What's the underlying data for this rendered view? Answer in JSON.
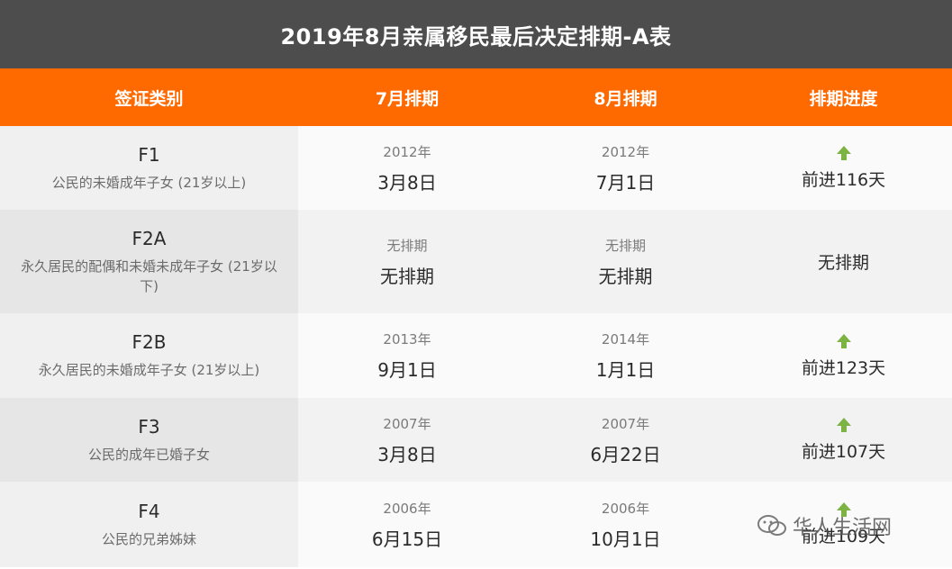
{
  "title": "2019年8月亲属移民最后决定排期-A表",
  "headers": {
    "category": "签证类别",
    "july": "7月排期",
    "august": "8月排期",
    "progress": "排期进度"
  },
  "rows": [
    {
      "code": "F1",
      "desc": "公民的未婚成年子女 (21岁以上)",
      "jul_year": "2012年",
      "jul_date": "3月8日",
      "aug_year": "2012年",
      "aug_date": "7月1日",
      "progress": "前进116天",
      "has_arrow": true
    },
    {
      "code": "F2A",
      "desc": "永久居民的配偶和未婚未成年子女 (21岁以下)",
      "jul_year": "无排期",
      "jul_date": "无排期",
      "aug_year": "无排期",
      "aug_date": "无排期",
      "progress": "无排期",
      "has_arrow": false
    },
    {
      "code": "F2B",
      "desc": "永久居民的未婚成年子女 (21岁以上)",
      "jul_year": "2013年",
      "jul_date": "9月1日",
      "aug_year": "2014年",
      "aug_date": "1月1日",
      "progress": "前进123天",
      "has_arrow": true
    },
    {
      "code": "F3",
      "desc": "公民的成年已婚子女",
      "jul_year": "2007年",
      "jul_date": "3月8日",
      "aug_year": "2007年",
      "aug_date": "6月22日",
      "progress": "前进107天",
      "has_arrow": true
    },
    {
      "code": "F4",
      "desc": "公民的兄弟姊妹",
      "jul_year": "2006年",
      "jul_date": "6月15日",
      "aug_year": "2006年",
      "aug_date": "10月1日",
      "progress": "前进109天",
      "has_arrow": true
    }
  ],
  "watermark": "华人生活网",
  "colors": {
    "title_bg": "#4d4d4d",
    "header_bg": "#ff6a00",
    "arrow": "#7cb342"
  }
}
